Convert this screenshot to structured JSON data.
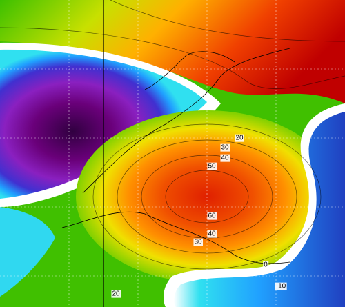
{
  "contour_labels": [
    "20",
    "30",
    "40",
    "50",
    "60",
    "40",
    "30",
    "20",
    "0",
    "-10"
  ]
}
